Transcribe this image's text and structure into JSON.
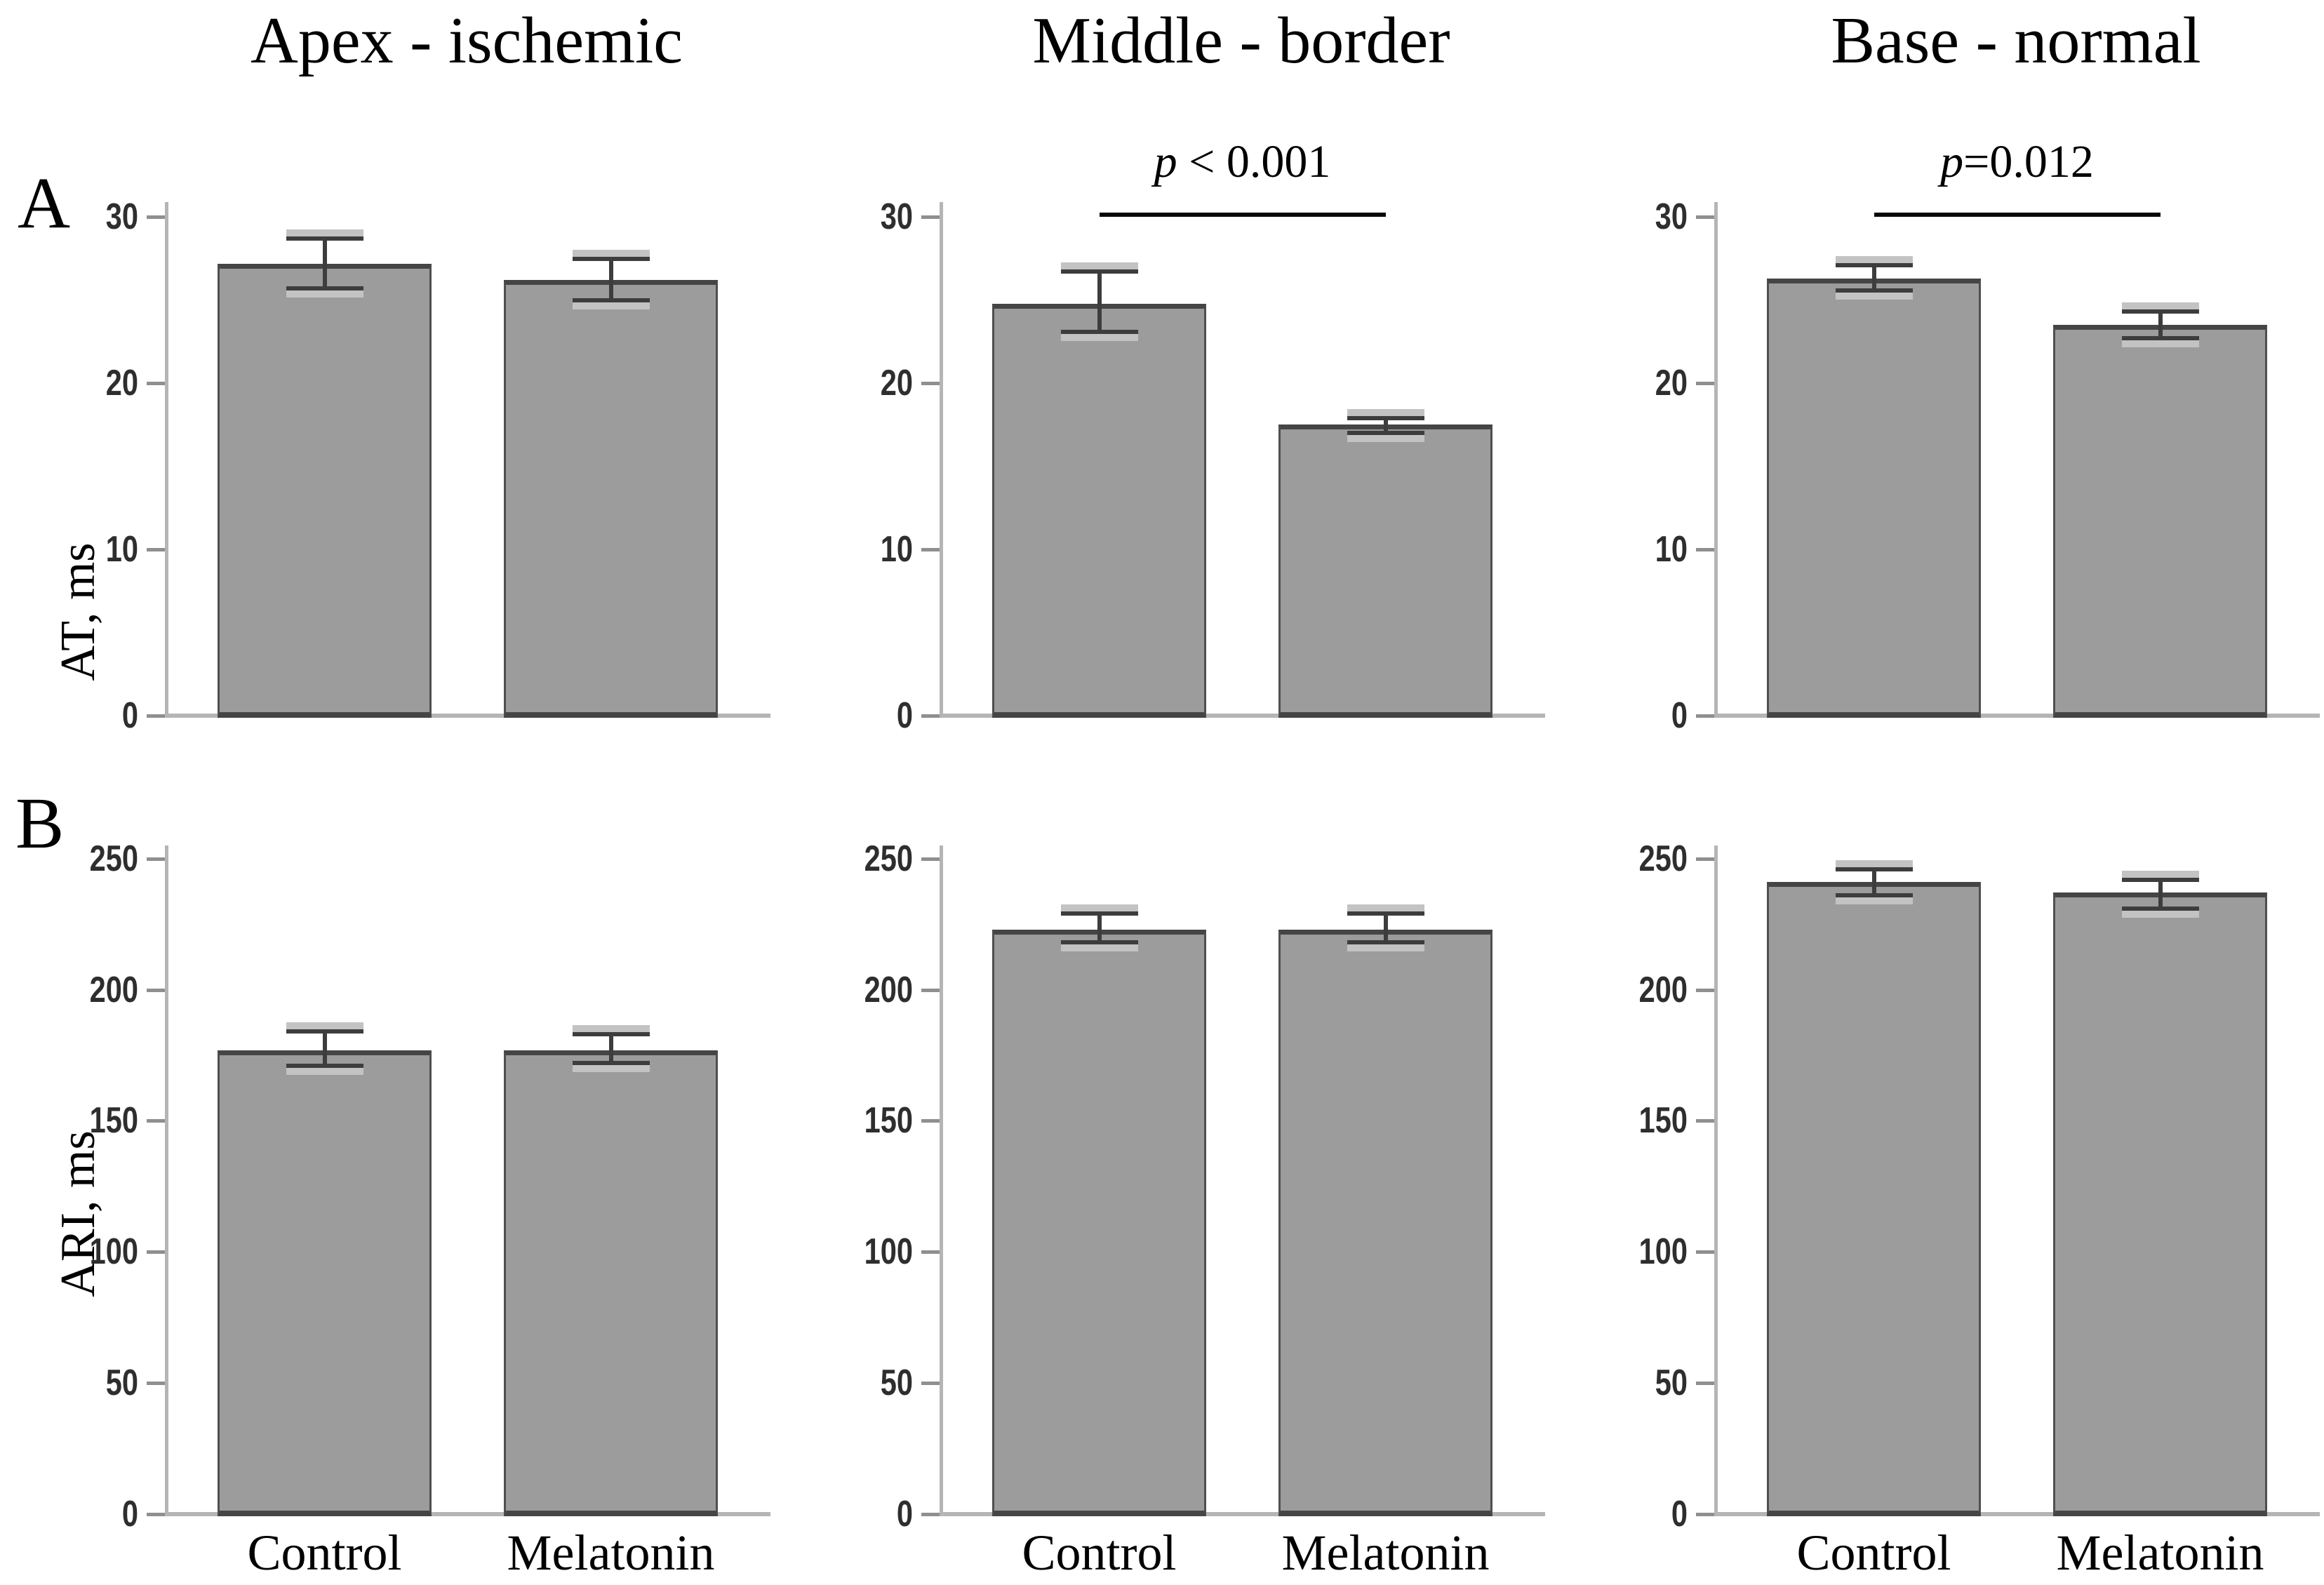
{
  "figure": {
    "panel_labels": [
      "A",
      "B"
    ],
    "column_titles": [
      "Apex - ischemic",
      "Middle - border",
      "Base - normal"
    ],
    "row_y_axis_titles": [
      "AT, ms",
      "ARI, ms"
    ],
    "x_category_labels": [
      "Control",
      "Melatonin"
    ],
    "colors": {
      "background": "#ffffff",
      "bar_fill": "#9c9c9c",
      "bar_border": "#4f4f4f",
      "bar_top_border": "#454545",
      "axis_line": "#b5b5b5",
      "tick_mark": "#8f8f8f",
      "tick_text": "#2e2e2e",
      "error_line": "#3d3d3d",
      "error_cap_light": "#c3c3c3",
      "significance_line": "#0a0a0a",
      "text": "#000000"
    }
  },
  "chart_data": [
    {
      "type": "bar",
      "panel": "A",
      "column_title": "Apex - ischemic",
      "ylabel": "AT, ms",
      "categories": [
        "Control",
        "Melatonin"
      ],
      "values": [
        27.2,
        26.2
      ],
      "error_minus": [
        1.5,
        1.2
      ],
      "error_plus": [
        1.5,
        1.3
      ],
      "yticks": [
        0,
        10,
        20,
        30
      ],
      "ylim": [
        0,
        30.9
      ],
      "significance": null,
      "show_x_labels": false
    },
    {
      "type": "bar",
      "panel": "A",
      "column_title": "Middle - border",
      "ylabel": "AT, ms",
      "categories": [
        "Control",
        "Melatonin"
      ],
      "values": [
        24.8,
        17.5
      ],
      "error_minus": [
        1.7,
        0.5
      ],
      "error_plus": [
        1.9,
        0.4
      ],
      "yticks": [
        0,
        10,
        20,
        30
      ],
      "ylim": [
        0,
        30.9
      ],
      "significance": "p < 0.001",
      "show_x_labels": false
    },
    {
      "type": "bar",
      "panel": "A",
      "column_title": "Base - normal",
      "ylabel": "AT, ms",
      "categories": [
        "Control",
        "Melatonin"
      ],
      "values": [
        26.3,
        23.5
      ],
      "error_minus": [
        0.7,
        0.8
      ],
      "error_plus": [
        0.8,
        0.8
      ],
      "yticks": [
        0,
        10,
        20,
        30
      ],
      "ylim": [
        0,
        30.9
      ],
      "significance": "p=0.012",
      "show_x_labels": false
    },
    {
      "type": "bar",
      "panel": "B",
      "column_title": "Apex - ischemic",
      "ylabel": "ARI, ms",
      "categories": [
        "Control",
        "Melatonin"
      ],
      "values": [
        177,
        177
      ],
      "error_minus": [
        6,
        5
      ],
      "error_plus": [
        7,
        6
      ],
      "yticks": [
        0,
        50,
        100,
        150,
        200,
        250
      ],
      "ylim": [
        0,
        255
      ],
      "significance": null,
      "show_x_labels": true
    },
    {
      "type": "bar",
      "panel": "B",
      "column_title": "Middle - border",
      "ylabel": "ARI, ms",
      "categories": [
        "Control",
        "Melatonin"
      ],
      "values": [
        223,
        223
      ],
      "error_minus": [
        5,
        5
      ],
      "error_plus": [
        6,
        6
      ],
      "yticks": [
        0,
        50,
        100,
        150,
        200,
        250
      ],
      "ylim": [
        0,
        255
      ],
      "significance": null,
      "show_x_labels": true
    },
    {
      "type": "bar",
      "panel": "B",
      "column_title": "Base - normal",
      "ylabel": "ARI, ms",
      "categories": [
        "Control",
        "Melatonin"
      ],
      "values": [
        241,
        237
      ],
      "error_minus": [
        5,
        6
      ],
      "error_plus": [
        5,
        5
      ],
      "yticks": [
        0,
        50,
        100,
        150,
        200,
        250
      ],
      "ylim": [
        0,
        255
      ],
      "significance": null,
      "show_x_labels": true
    }
  ]
}
